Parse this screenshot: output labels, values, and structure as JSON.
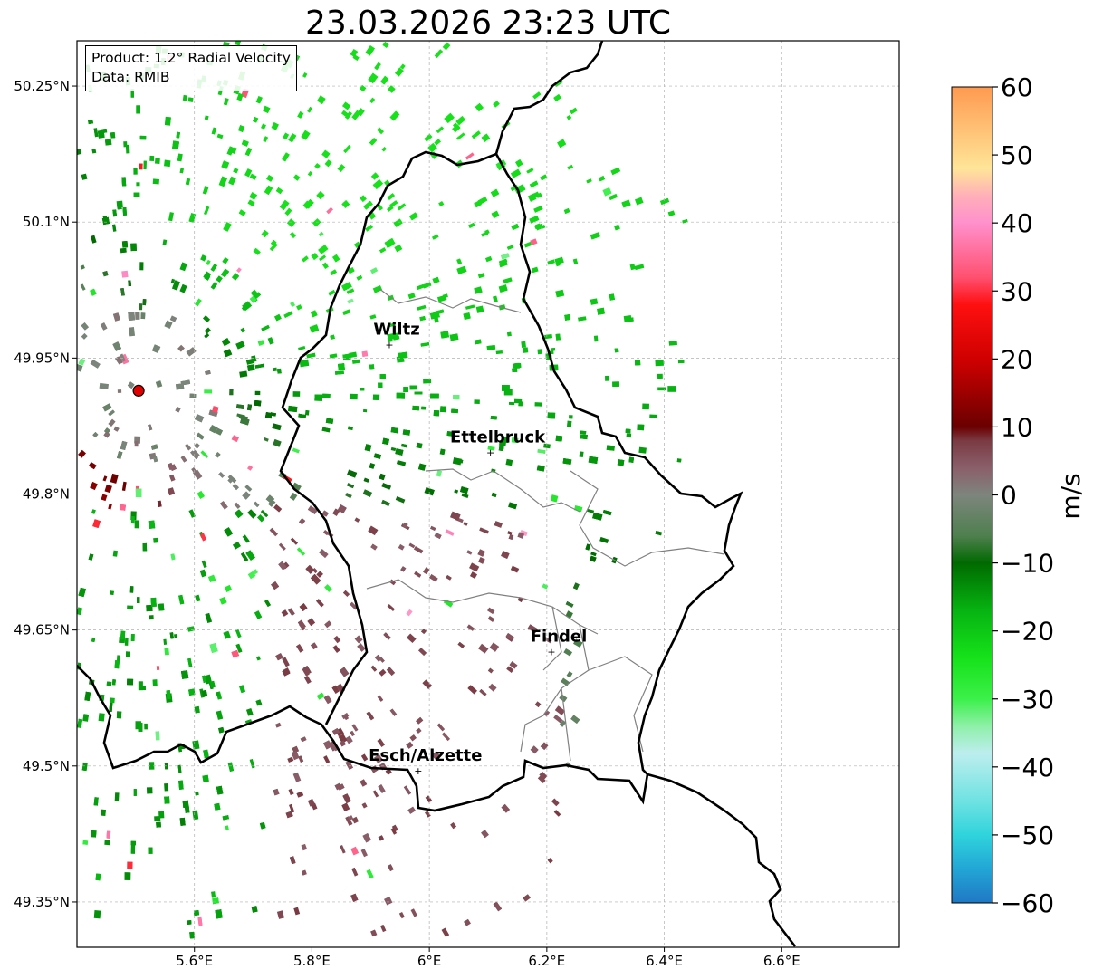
{
  "title": "23.03.2026 23:23 UTC",
  "info": {
    "product_line": "Product: 1.2° Radial Velocity",
    "data_line": "Data: RMIB"
  },
  "map": {
    "lon_range": [
      5.4,
      6.8
    ],
    "lat_range": [
      49.3,
      50.3
    ],
    "lon_ticks": [
      {
        "value": 5.6,
        "label": "5.6°E"
      },
      {
        "value": 5.8,
        "label": "5.8°E"
      },
      {
        "value": 6.0,
        "label": "6°E"
      },
      {
        "value": 6.2,
        "label": "6.2°E"
      },
      {
        "value": 6.4,
        "label": "6.4°E"
      },
      {
        "value": 6.6,
        "label": "6.6°E"
      }
    ],
    "lat_ticks": [
      {
        "value": 49.35,
        "label": "49.35°N"
      },
      {
        "value": 49.5,
        "label": "49.5°N"
      },
      {
        "value": 49.65,
        "label": "49.65°N"
      },
      {
        "value": 49.8,
        "label": "49.8°N"
      },
      {
        "value": 49.95,
        "label": "49.95°N"
      },
      {
        "value": 50.1,
        "label": "50.1°N"
      },
      {
        "value": 50.25,
        "label": "50.25°N"
      }
    ],
    "grid": "dashed",
    "radar_site": {
      "lon": 5.505,
      "lat": 49.914,
      "color": "#e00000"
    },
    "cities": [
      {
        "name": "Wiltz",
        "lon": 5.932,
        "lat": 49.966
      },
      {
        "name": "Ettelbruck",
        "lon": 6.104,
        "lat": 49.847
      },
      {
        "name": "Findel",
        "lon": 6.208,
        "lat": 49.627
      },
      {
        "name": "Esch/Alzette",
        "lon": 5.981,
        "lat": 49.496
      }
    ]
  },
  "colorbar": {
    "label": "m/s",
    "vmin": -60,
    "vmax": 60,
    "ticks": [
      {
        "value": 60,
        "label": "60"
      },
      {
        "value": 50,
        "label": "50"
      },
      {
        "value": 40,
        "label": "40"
      },
      {
        "value": 30,
        "label": "30"
      },
      {
        "value": 20,
        "label": "20"
      },
      {
        "value": 10,
        "label": "10"
      },
      {
        "value": 0,
        "label": "0"
      },
      {
        "value": -10,
        "label": "−10"
      },
      {
        "value": -20,
        "label": "−20"
      },
      {
        "value": -30,
        "label": "−30"
      },
      {
        "value": -40,
        "label": "−40"
      },
      {
        "value": -50,
        "label": "−50"
      },
      {
        "value": -60,
        "label": "−60"
      }
    ],
    "stops": [
      {
        "value": -60,
        "color": "#1f78c4"
      },
      {
        "value": -55,
        "color": "#22a6d6"
      },
      {
        "value": -50,
        "color": "#2fd4dc"
      },
      {
        "value": -45,
        "color": "#6fe2e2"
      },
      {
        "value": -38,
        "color": "#bdeeee"
      },
      {
        "value": -34,
        "color": "#8ef0a8"
      },
      {
        "value": -30,
        "color": "#3cf04a"
      },
      {
        "value": -24,
        "color": "#16e21a"
      },
      {
        "value": -17,
        "color": "#07b312"
      },
      {
        "value": -10,
        "color": "#006a00"
      },
      {
        "value": -6,
        "color": "#4f7f4f"
      },
      {
        "value": 0,
        "color": "#7d857d"
      },
      {
        "value": 4,
        "color": "#8a5f6a"
      },
      {
        "value": 8,
        "color": "#7a3a42"
      },
      {
        "value": 10,
        "color": "#6a0000"
      },
      {
        "value": 20,
        "color": "#d00000"
      },
      {
        "value": 28,
        "color": "#ff1010"
      },
      {
        "value": 32,
        "color": "#ff5070"
      },
      {
        "value": 40,
        "color": "#ff90cc"
      },
      {
        "value": 44,
        "color": "#ffb0b8"
      },
      {
        "value": 48,
        "color": "#ffe598"
      },
      {
        "value": 60,
        "color": "#ff9a50"
      }
    ]
  }
}
